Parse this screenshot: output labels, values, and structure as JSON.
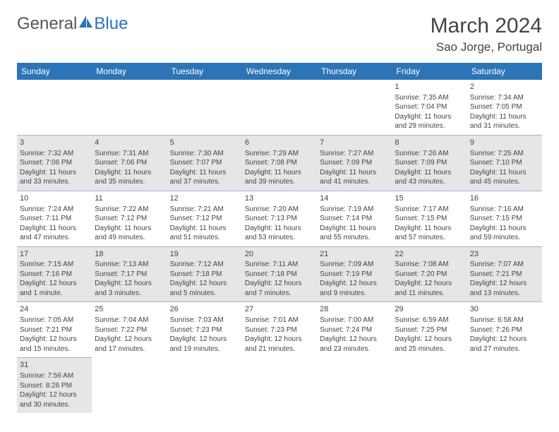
{
  "brand": {
    "part1": "General",
    "part2": "Blue"
  },
  "title": "March 2024",
  "location": "Sao Jorge, Portugal",
  "colors": {
    "header_bg": "#2b74b8",
    "header_fg": "#ffffff",
    "shade_bg": "#e6e6e6",
    "border": "#9bb8d1",
    "text": "#444444",
    "logo_gray": "#555555",
    "logo_blue": "#2b74b8"
  },
  "typography": {
    "title_fontsize": 30,
    "location_fontsize": 17,
    "dayheader_fontsize": 12,
    "cell_fontsize": 10
  },
  "day_headers": [
    "Sunday",
    "Monday",
    "Tuesday",
    "Wednesday",
    "Thursday",
    "Friday",
    "Saturday"
  ],
  "weeks": [
    [
      {
        "empty": true
      },
      {
        "empty": true
      },
      {
        "empty": true
      },
      {
        "empty": true
      },
      {
        "empty": true
      },
      {
        "n": "1",
        "sunrise": "Sunrise: 7:35 AM",
        "sunset": "Sunset: 7:04 PM",
        "daylight": "Daylight: 11 hours and 29 minutes."
      },
      {
        "n": "2",
        "sunrise": "Sunrise: 7:34 AM",
        "sunset": "Sunset: 7:05 PM",
        "daylight": "Daylight: 11 hours and 31 minutes."
      }
    ],
    [
      {
        "n": "3",
        "shade": true,
        "sunrise": "Sunrise: 7:32 AM",
        "sunset": "Sunset: 7:06 PM",
        "daylight": "Daylight: 11 hours and 33 minutes."
      },
      {
        "n": "4",
        "shade": true,
        "sunrise": "Sunrise: 7:31 AM",
        "sunset": "Sunset: 7:06 PM",
        "daylight": "Daylight: 11 hours and 35 minutes."
      },
      {
        "n": "5",
        "shade": true,
        "sunrise": "Sunrise: 7:30 AM",
        "sunset": "Sunset: 7:07 PM",
        "daylight": "Daylight: 11 hours and 37 minutes."
      },
      {
        "n": "6",
        "shade": true,
        "sunrise": "Sunrise: 7:29 AM",
        "sunset": "Sunset: 7:08 PM",
        "daylight": "Daylight: 11 hours and 39 minutes."
      },
      {
        "n": "7",
        "shade": true,
        "sunrise": "Sunrise: 7:27 AM",
        "sunset": "Sunset: 7:09 PM",
        "daylight": "Daylight: 11 hours and 41 minutes."
      },
      {
        "n": "8",
        "shade": true,
        "sunrise": "Sunrise: 7:26 AM",
        "sunset": "Sunset: 7:09 PM",
        "daylight": "Daylight: 11 hours and 43 minutes."
      },
      {
        "n": "9",
        "shade": true,
        "sunrise": "Sunrise: 7:25 AM",
        "sunset": "Sunset: 7:10 PM",
        "daylight": "Daylight: 11 hours and 45 minutes."
      }
    ],
    [
      {
        "n": "10",
        "sunrise": "Sunrise: 7:24 AM",
        "sunset": "Sunset: 7:11 PM",
        "daylight": "Daylight: 11 hours and 47 minutes."
      },
      {
        "n": "11",
        "sunrise": "Sunrise: 7:22 AM",
        "sunset": "Sunset: 7:12 PM",
        "daylight": "Daylight: 11 hours and 49 minutes."
      },
      {
        "n": "12",
        "sunrise": "Sunrise: 7:21 AM",
        "sunset": "Sunset: 7:12 PM",
        "daylight": "Daylight: 11 hours and 51 minutes."
      },
      {
        "n": "13",
        "sunrise": "Sunrise: 7:20 AM",
        "sunset": "Sunset: 7:13 PM",
        "daylight": "Daylight: 11 hours and 53 minutes."
      },
      {
        "n": "14",
        "sunrise": "Sunrise: 7:19 AM",
        "sunset": "Sunset: 7:14 PM",
        "daylight": "Daylight: 11 hours and 55 minutes."
      },
      {
        "n": "15",
        "sunrise": "Sunrise: 7:17 AM",
        "sunset": "Sunset: 7:15 PM",
        "daylight": "Daylight: 11 hours and 57 minutes."
      },
      {
        "n": "16",
        "sunrise": "Sunrise: 7:16 AM",
        "sunset": "Sunset: 7:15 PM",
        "daylight": "Daylight: 11 hours and 59 minutes."
      }
    ],
    [
      {
        "n": "17",
        "shade": true,
        "sunrise": "Sunrise: 7:15 AM",
        "sunset": "Sunset: 7:16 PM",
        "daylight": "Daylight: 12 hours and 1 minute."
      },
      {
        "n": "18",
        "shade": true,
        "sunrise": "Sunrise: 7:13 AM",
        "sunset": "Sunset: 7:17 PM",
        "daylight": "Daylight: 12 hours and 3 minutes."
      },
      {
        "n": "19",
        "shade": true,
        "sunrise": "Sunrise: 7:12 AM",
        "sunset": "Sunset: 7:18 PM",
        "daylight": "Daylight: 12 hours and 5 minutes."
      },
      {
        "n": "20",
        "shade": true,
        "sunrise": "Sunrise: 7:11 AM",
        "sunset": "Sunset: 7:18 PM",
        "daylight": "Daylight: 12 hours and 7 minutes."
      },
      {
        "n": "21",
        "shade": true,
        "sunrise": "Sunrise: 7:09 AM",
        "sunset": "Sunset: 7:19 PM",
        "daylight": "Daylight: 12 hours and 9 minutes."
      },
      {
        "n": "22",
        "shade": true,
        "sunrise": "Sunrise: 7:08 AM",
        "sunset": "Sunset: 7:20 PM",
        "daylight": "Daylight: 12 hours and 11 minutes."
      },
      {
        "n": "23",
        "shade": true,
        "sunrise": "Sunrise: 7:07 AM",
        "sunset": "Sunset: 7:21 PM",
        "daylight": "Daylight: 12 hours and 13 minutes."
      }
    ],
    [
      {
        "n": "24",
        "sunrise": "Sunrise: 7:05 AM",
        "sunset": "Sunset: 7:21 PM",
        "daylight": "Daylight: 12 hours and 15 minutes."
      },
      {
        "n": "25",
        "sunrise": "Sunrise: 7:04 AM",
        "sunset": "Sunset: 7:22 PM",
        "daylight": "Daylight: 12 hours and 17 minutes."
      },
      {
        "n": "26",
        "sunrise": "Sunrise: 7:03 AM",
        "sunset": "Sunset: 7:23 PM",
        "daylight": "Daylight: 12 hours and 19 minutes."
      },
      {
        "n": "27",
        "sunrise": "Sunrise: 7:01 AM",
        "sunset": "Sunset: 7:23 PM",
        "daylight": "Daylight: 12 hours and 21 minutes."
      },
      {
        "n": "28",
        "sunrise": "Sunrise: 7:00 AM",
        "sunset": "Sunset: 7:24 PM",
        "daylight": "Daylight: 12 hours and 23 minutes."
      },
      {
        "n": "29",
        "sunrise": "Sunrise: 6:59 AM",
        "sunset": "Sunset: 7:25 PM",
        "daylight": "Daylight: 12 hours and 25 minutes."
      },
      {
        "n": "30",
        "sunrise": "Sunrise: 6:58 AM",
        "sunset": "Sunset: 7:26 PM",
        "daylight": "Daylight: 12 hours and 27 minutes."
      }
    ],
    [
      {
        "n": "31",
        "shade": true,
        "sunrise": "Sunrise: 7:56 AM",
        "sunset": "Sunset: 8:26 PM",
        "daylight": "Daylight: 12 hours and 30 minutes."
      },
      {
        "empty": true
      },
      {
        "empty": true
      },
      {
        "empty": true
      },
      {
        "empty": true
      },
      {
        "empty": true
      },
      {
        "empty": true
      }
    ]
  ]
}
